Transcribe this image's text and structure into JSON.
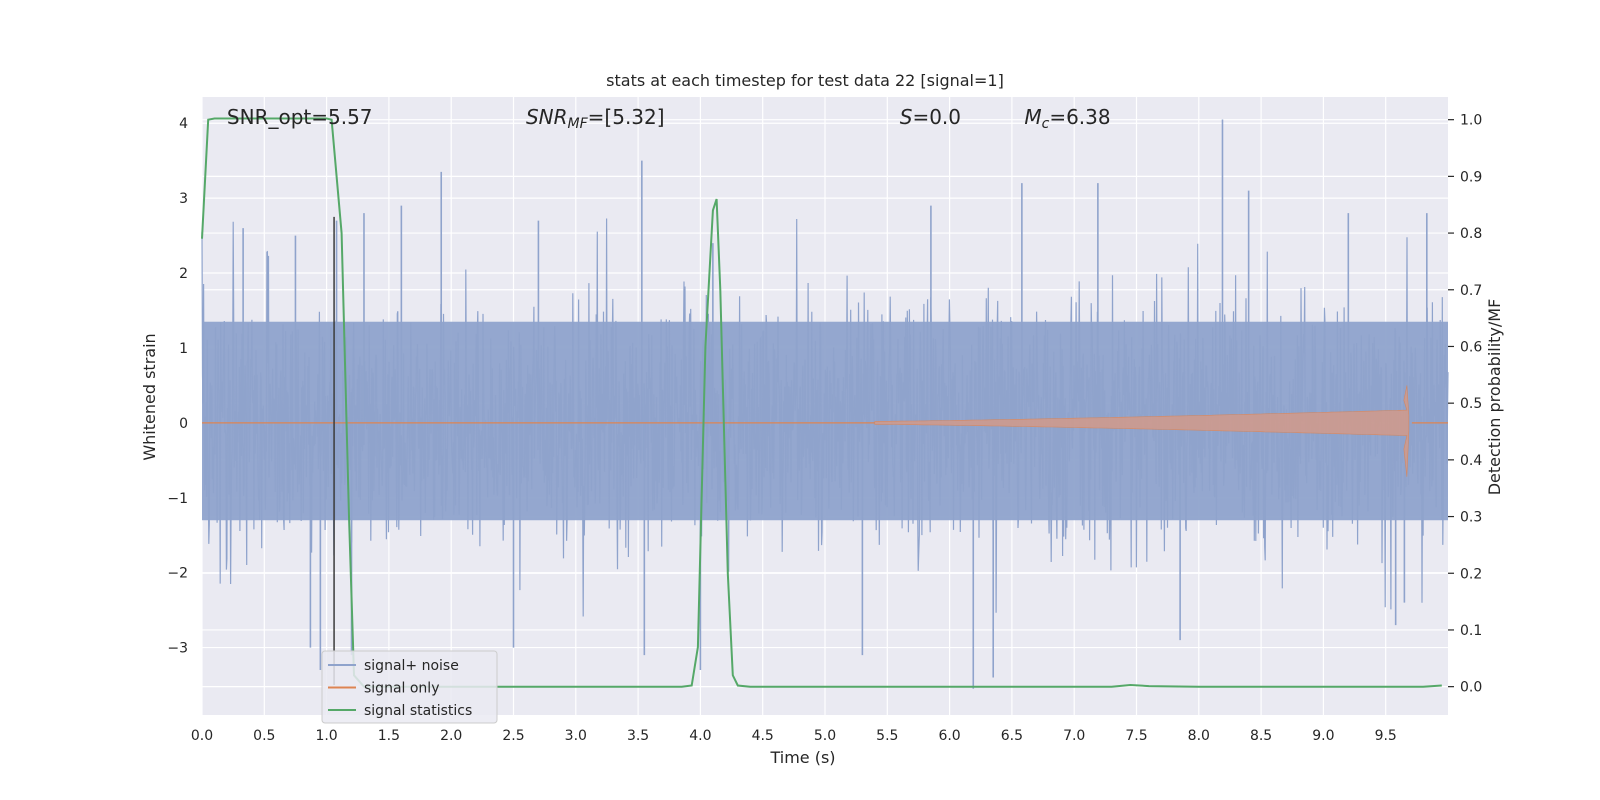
{
  "chart_data": {
    "type": "line",
    "title": "stats at each timestep for test data 22 [signal=1]",
    "xlabel": "Time (s)",
    "ylabel_left": "Whitened strain",
    "ylabel_right": "Detection probability/MF",
    "xlim": [
      0.0,
      10.0
    ],
    "ylim_left": [
      -3.9,
      4.35
    ],
    "ylim_right": [
      -0.05,
      1.04
    ],
    "x_ticks": [
      "0.0",
      "0.5",
      "1.0",
      "1.5",
      "2.0",
      "2.5",
      "3.0",
      "3.5",
      "4.0",
      "4.5",
      "5.0",
      "5.5",
      "6.0",
      "6.5",
      "7.0",
      "7.5",
      "8.0",
      "8.5",
      "9.0",
      "9.5"
    ],
    "y_ticks_left": [
      "−3",
      "−2",
      "−1",
      "0",
      "1",
      "2",
      "3",
      "4"
    ],
    "y_ticks_right": [
      "0.0",
      "0.1",
      "0.2",
      "0.3",
      "0.4",
      "0.5",
      "0.6",
      "0.7",
      "0.8",
      "0.9",
      "1.0"
    ],
    "grid": true,
    "annotations": [
      {
        "text": "SNR_opt=5.57",
        "x": 0.2
      },
      {
        "text": "SNR",
        "sub": "MF",
        "suffix": "=[5.32]",
        "x": 2.6
      },
      {
        "text": "S",
        "suffix": "=0.0",
        "x": 5.6
      },
      {
        "text": "M",
        "sub": "c",
        "suffix": "=6.38",
        "x": 6.6
      }
    ],
    "legend": {
      "placement": "bottom-left",
      "entries": [
        {
          "label": "signal+ noise",
          "color": "#8fa3cc"
        },
        {
          "label": "signal only",
          "color": "#dd8452"
        },
        {
          "label": "signal statistics",
          "color": "#55a868"
        }
      ]
    },
    "vertical_line": {
      "x": 1.06,
      "ymin": -3.5,
      "ymax": 2.75,
      "color": "#3b3b3b"
    },
    "series": [
      {
        "name": "signal+ noise",
        "axis": "left",
        "color": "#8fa3cc",
        "style": "noise",
        "bulk_range": [
          -1.3,
          1.35
        ],
        "spikes": [
          {
            "x": 0.33,
            "y": 2.6
          },
          {
            "x": 0.75,
            "y": 2.5
          },
          {
            "x": 0.87,
            "y": -3.0
          },
          {
            "x": 0.95,
            "y": -3.3
          },
          {
            "x": 1.08,
            "y": 2.7
          },
          {
            "x": 1.3,
            "y": 2.8
          },
          {
            "x": 1.6,
            "y": 2.9
          },
          {
            "x": 1.92,
            "y": 3.35
          },
          {
            "x": 1.2,
            "y": -3.1
          },
          {
            "x": 2.5,
            "y": -3.0
          },
          {
            "x": 2.7,
            "y": 2.7
          },
          {
            "x": 3.53,
            "y": 3.5
          },
          {
            "x": 3.55,
            "y": -3.1
          },
          {
            "x": 4.0,
            "y": -3.3
          },
          {
            "x": 4.1,
            "y": 2.4
          },
          {
            "x": 5.3,
            "y": -3.1
          },
          {
            "x": 5.85,
            "y": 2.9
          },
          {
            "x": 6.19,
            "y": -3.55
          },
          {
            "x": 6.35,
            "y": -3.4
          },
          {
            "x": 6.58,
            "y": 3.2
          },
          {
            "x": 7.19,
            "y": 3.2
          },
          {
            "x": 8.19,
            "y": 4.05
          },
          {
            "x": 8.4,
            "y": 3.1
          },
          {
            "x": 9.2,
            "y": 2.8
          },
          {
            "x": 9.58,
            "y": -2.7
          },
          {
            "x": 9.83,
            "y": 2.8
          },
          {
            "x": 9.65,
            "y": -2.4
          },
          {
            "x": 7.85,
            "y": -2.9
          }
        ]
      },
      {
        "name": "signal only",
        "axis": "left",
        "color": "#dd8452",
        "style": "chirp",
        "start": 5.4,
        "peak_x": 9.67,
        "peak_amp": 0.5,
        "end": 9.71
      },
      {
        "name": "signal statistics",
        "axis": "right",
        "color": "#55a868",
        "x": [
          0.0,
          0.05,
          0.1,
          0.2,
          0.5,
          0.9,
          1.0,
          1.04,
          1.12,
          1.18,
          1.22,
          1.3,
          2.0,
          3.0,
          3.85,
          3.93,
          3.98,
          4.04,
          4.1,
          4.13,
          4.16,
          4.22,
          4.26,
          4.3,
          4.4,
          5.0,
          6.0,
          7.0,
          7.3,
          7.45,
          7.6,
          8.0,
          9.0,
          9.8,
          9.95
        ],
        "y": [
          0.79,
          1.0,
          1.002,
          1.002,
          1.002,
          1.002,
          1.002,
          1.0,
          0.8,
          0.3,
          0.02,
          0.0,
          0.0,
          0.0,
          0.0,
          0.002,
          0.07,
          0.6,
          0.84,
          0.86,
          0.7,
          0.2,
          0.02,
          0.002,
          0.0,
          0.0,
          0.0,
          0.0,
          0.0,
          0.003,
          0.001,
          0.0,
          0.0,
          0.0,
          0.002
        ]
      }
    ]
  }
}
